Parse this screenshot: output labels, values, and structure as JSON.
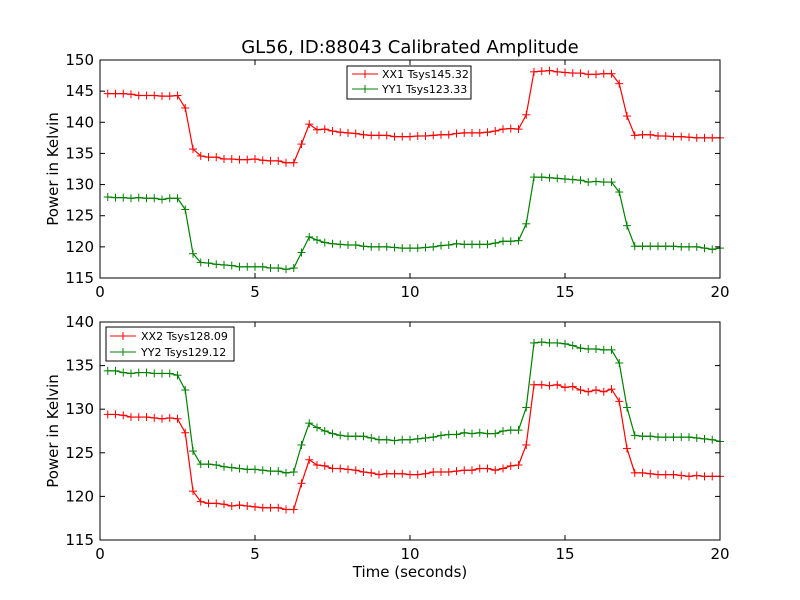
{
  "figure": {
    "title": "GL56, ID:88043 Calibrated Amplitude"
  },
  "chart_data": [
    {
      "type": "line",
      "title": "GL56, ID:88043 Calibrated Amplitude",
      "xlabel": "",
      "ylabel": "Power in Kelvin",
      "xlim": [
        0,
        20
      ],
      "ylim": [
        115,
        150
      ],
      "xticks": [
        0,
        5,
        10,
        15,
        20
      ],
      "yticks": [
        115,
        120,
        125,
        130,
        135,
        140,
        145,
        150
      ],
      "grid": false,
      "legend_position": "top-center",
      "series": [
        {
          "name": "XX1 Tsys145.32",
          "color": "#ff0000",
          "x": [
            0.25,
            0.5,
            0.75,
            1.0,
            1.25,
            1.5,
            1.75,
            2.0,
            2.25,
            2.5,
            2.75,
            3.0,
            3.25,
            3.5,
            3.75,
            4.0,
            4.25,
            4.5,
            4.75,
            5.0,
            5.25,
            5.5,
            5.75,
            6.0,
            6.25,
            6.5,
            6.75,
            7.0,
            7.25,
            7.5,
            7.75,
            8.0,
            8.25,
            8.5,
            8.75,
            9.0,
            9.25,
            9.5,
            9.75,
            10.0,
            10.25,
            10.5,
            10.75,
            11.0,
            11.25,
            11.5,
            11.75,
            12.0,
            12.25,
            12.5,
            12.75,
            13.0,
            13.25,
            13.5,
            13.75,
            14.0,
            14.25,
            14.5,
            14.75,
            15.0,
            15.25,
            15.5,
            15.75,
            16.0,
            16.25,
            16.5,
            16.75,
            17.0,
            17.25,
            17.5,
            17.75,
            18.0,
            18.25,
            18.5,
            18.75,
            19.0,
            19.25,
            19.5,
            19.75,
            20.0
          ],
          "values": [
            144.6,
            144.6,
            144.6,
            144.5,
            144.3,
            144.3,
            144.3,
            144.2,
            144.2,
            144.3,
            142.3,
            135.7,
            134.6,
            134.4,
            134.4,
            134.1,
            134.1,
            134.0,
            134.0,
            134.1,
            133.9,
            133.8,
            133.8,
            133.5,
            133.5,
            136.5,
            139.7,
            138.8,
            138.9,
            138.6,
            138.4,
            138.3,
            138.2,
            138.0,
            137.9,
            137.9,
            137.9,
            137.7,
            137.7,
            137.7,
            137.8,
            137.8,
            137.9,
            138.0,
            138.0,
            138.2,
            138.3,
            138.3,
            138.3,
            138.4,
            138.6,
            138.9,
            139.0,
            138.9,
            141.2,
            148.1,
            148.2,
            148.3,
            148.1,
            148.0,
            147.9,
            147.9,
            147.7,
            147.7,
            147.8,
            147.8,
            146.2,
            141.0,
            137.9,
            138.0,
            138.0,
            137.8,
            137.8,
            137.7,
            137.7,
            137.6,
            137.5,
            137.5,
            137.5,
            137.5
          ]
        },
        {
          "name": "YY1 Tsys123.33",
          "color": "#008000",
          "x": [
            0.25,
            0.5,
            0.75,
            1.0,
            1.25,
            1.5,
            1.75,
            2.0,
            2.25,
            2.5,
            2.75,
            3.0,
            3.25,
            3.5,
            3.75,
            4.0,
            4.25,
            4.5,
            4.75,
            5.0,
            5.25,
            5.5,
            5.75,
            6.0,
            6.25,
            6.5,
            6.75,
            7.0,
            7.25,
            7.5,
            7.75,
            8.0,
            8.25,
            8.5,
            8.75,
            9.0,
            9.25,
            9.5,
            9.75,
            10.0,
            10.25,
            10.5,
            10.75,
            11.0,
            11.25,
            11.5,
            11.75,
            12.0,
            12.25,
            12.5,
            12.75,
            13.0,
            13.25,
            13.5,
            13.75,
            14.0,
            14.25,
            14.5,
            14.75,
            15.0,
            15.25,
            15.5,
            15.75,
            16.0,
            16.25,
            16.5,
            16.75,
            17.0,
            17.25,
            17.5,
            17.75,
            18.0,
            18.25,
            18.5,
            18.75,
            19.0,
            19.25,
            19.5,
            19.75,
            20.0
          ],
          "values": [
            128.0,
            127.9,
            127.9,
            127.8,
            127.9,
            127.8,
            127.8,
            127.6,
            127.8,
            127.8,
            126.0,
            118.9,
            117.5,
            117.4,
            117.2,
            117.1,
            117.0,
            116.8,
            116.8,
            116.8,
            116.8,
            116.6,
            116.6,
            116.4,
            116.6,
            119.1,
            121.6,
            121.1,
            120.7,
            120.5,
            120.4,
            120.3,
            120.3,
            120.1,
            120.0,
            120.0,
            120.0,
            119.9,
            119.8,
            119.8,
            119.8,
            119.9,
            120.0,
            120.2,
            120.3,
            120.5,
            120.4,
            120.4,
            120.4,
            120.4,
            120.6,
            120.9,
            120.9,
            121.0,
            123.7,
            131.2,
            131.2,
            131.1,
            131.0,
            130.9,
            130.8,
            130.7,
            130.4,
            130.5,
            130.4,
            130.4,
            128.8,
            123.4,
            120.1,
            120.1,
            120.1,
            120.1,
            120.1,
            120.1,
            120.0,
            120.0,
            120.0,
            119.8,
            119.6,
            119.8
          ]
        }
      ]
    },
    {
      "type": "line",
      "title": "",
      "xlabel": "Time (seconds)",
      "ylabel": "Power in Kelvin",
      "xlim": [
        0,
        20
      ],
      "ylim": [
        115,
        140
      ],
      "xticks": [
        0,
        5,
        10,
        15,
        20
      ],
      "yticks": [
        115,
        120,
        125,
        130,
        135,
        140
      ],
      "grid": false,
      "legend_position": "top-left",
      "series": [
        {
          "name": "XX2 Tsys128.09",
          "color": "#ff0000",
          "x": [
            0.25,
            0.5,
            0.75,
            1.0,
            1.25,
            1.5,
            1.75,
            2.0,
            2.25,
            2.5,
            2.75,
            3.0,
            3.25,
            3.5,
            3.75,
            4.0,
            4.25,
            4.5,
            4.75,
            5.0,
            5.25,
            5.5,
            5.75,
            6.0,
            6.25,
            6.5,
            6.75,
            7.0,
            7.25,
            7.5,
            7.75,
            8.0,
            8.25,
            8.5,
            8.75,
            9.0,
            9.25,
            9.5,
            9.75,
            10.0,
            10.25,
            10.5,
            10.75,
            11.0,
            11.25,
            11.5,
            11.75,
            12.0,
            12.25,
            12.5,
            12.75,
            13.0,
            13.25,
            13.5,
            13.75,
            14.0,
            14.25,
            14.5,
            14.75,
            15.0,
            15.25,
            15.5,
            15.75,
            16.0,
            16.25,
            16.5,
            16.75,
            17.0,
            17.25,
            17.5,
            17.75,
            18.0,
            18.25,
            18.5,
            18.75,
            19.0,
            19.25,
            19.5,
            19.75,
            20.0
          ],
          "values": [
            129.4,
            129.4,
            129.3,
            129.1,
            129.1,
            129.1,
            129.0,
            128.9,
            129.0,
            128.9,
            127.3,
            120.6,
            119.4,
            119.2,
            119.2,
            119.1,
            118.9,
            119.0,
            118.9,
            118.8,
            118.7,
            118.7,
            118.7,
            118.5,
            118.5,
            121.5,
            124.2,
            123.6,
            123.5,
            123.2,
            123.2,
            123.1,
            123.0,
            122.8,
            122.7,
            122.5,
            122.6,
            122.6,
            122.6,
            122.5,
            122.5,
            122.6,
            122.8,
            122.8,
            122.8,
            122.9,
            123.0,
            123.0,
            123.2,
            123.2,
            123.0,
            123.2,
            123.5,
            123.6,
            125.9,
            132.8,
            132.8,
            132.7,
            132.8,
            132.5,
            132.6,
            132.2,
            132.0,
            132.2,
            132.0,
            132.3,
            130.9,
            125.5,
            122.7,
            122.7,
            122.6,
            122.5,
            122.5,
            122.5,
            122.4,
            122.3,
            122.4,
            122.3,
            122.3,
            122.3
          ]
        },
        {
          "name": "YY2 Tsys129.12",
          "color": "#008000",
          "x": [
            0.25,
            0.5,
            0.75,
            1.0,
            1.25,
            1.5,
            1.75,
            2.0,
            2.25,
            2.5,
            2.75,
            3.0,
            3.25,
            3.5,
            3.75,
            4.0,
            4.25,
            4.5,
            4.75,
            5.0,
            5.25,
            5.5,
            5.75,
            6.0,
            6.25,
            6.5,
            6.75,
            7.0,
            7.25,
            7.5,
            7.75,
            8.0,
            8.25,
            8.5,
            8.75,
            9.0,
            9.25,
            9.5,
            9.75,
            10.0,
            10.25,
            10.5,
            10.75,
            11.0,
            11.25,
            11.5,
            11.75,
            12.0,
            12.25,
            12.5,
            12.75,
            13.0,
            13.25,
            13.5,
            13.75,
            14.0,
            14.25,
            14.5,
            14.75,
            15.0,
            15.25,
            15.5,
            15.75,
            16.0,
            16.25,
            16.5,
            16.75,
            17.0,
            17.25,
            17.5,
            17.75,
            18.0,
            18.25,
            18.5,
            18.75,
            19.0,
            19.25,
            19.5,
            19.75,
            20.0
          ],
          "values": [
            134.4,
            134.4,
            134.2,
            134.1,
            134.2,
            134.2,
            134.1,
            134.1,
            134.1,
            133.9,
            132.2,
            125.2,
            123.7,
            123.7,
            123.6,
            123.4,
            123.3,
            123.2,
            123.1,
            123.1,
            123.0,
            122.9,
            122.9,
            122.7,
            122.8,
            125.9,
            128.4,
            127.9,
            127.5,
            127.2,
            127.0,
            126.9,
            126.9,
            126.9,
            126.7,
            126.5,
            126.5,
            126.4,
            126.5,
            126.5,
            126.6,
            126.7,
            126.8,
            127.0,
            127.1,
            127.1,
            127.3,
            127.2,
            127.3,
            127.2,
            127.2,
            127.5,
            127.6,
            127.6,
            130.2,
            137.6,
            137.7,
            137.6,
            137.6,
            137.5,
            137.3,
            137.0,
            136.9,
            136.9,
            136.8,
            136.8,
            135.3,
            130.2,
            127.0,
            126.9,
            126.9,
            126.8,
            126.8,
            126.8,
            126.8,
            126.8,
            126.7,
            126.6,
            126.5,
            126.3
          ]
        }
      ]
    }
  ]
}
